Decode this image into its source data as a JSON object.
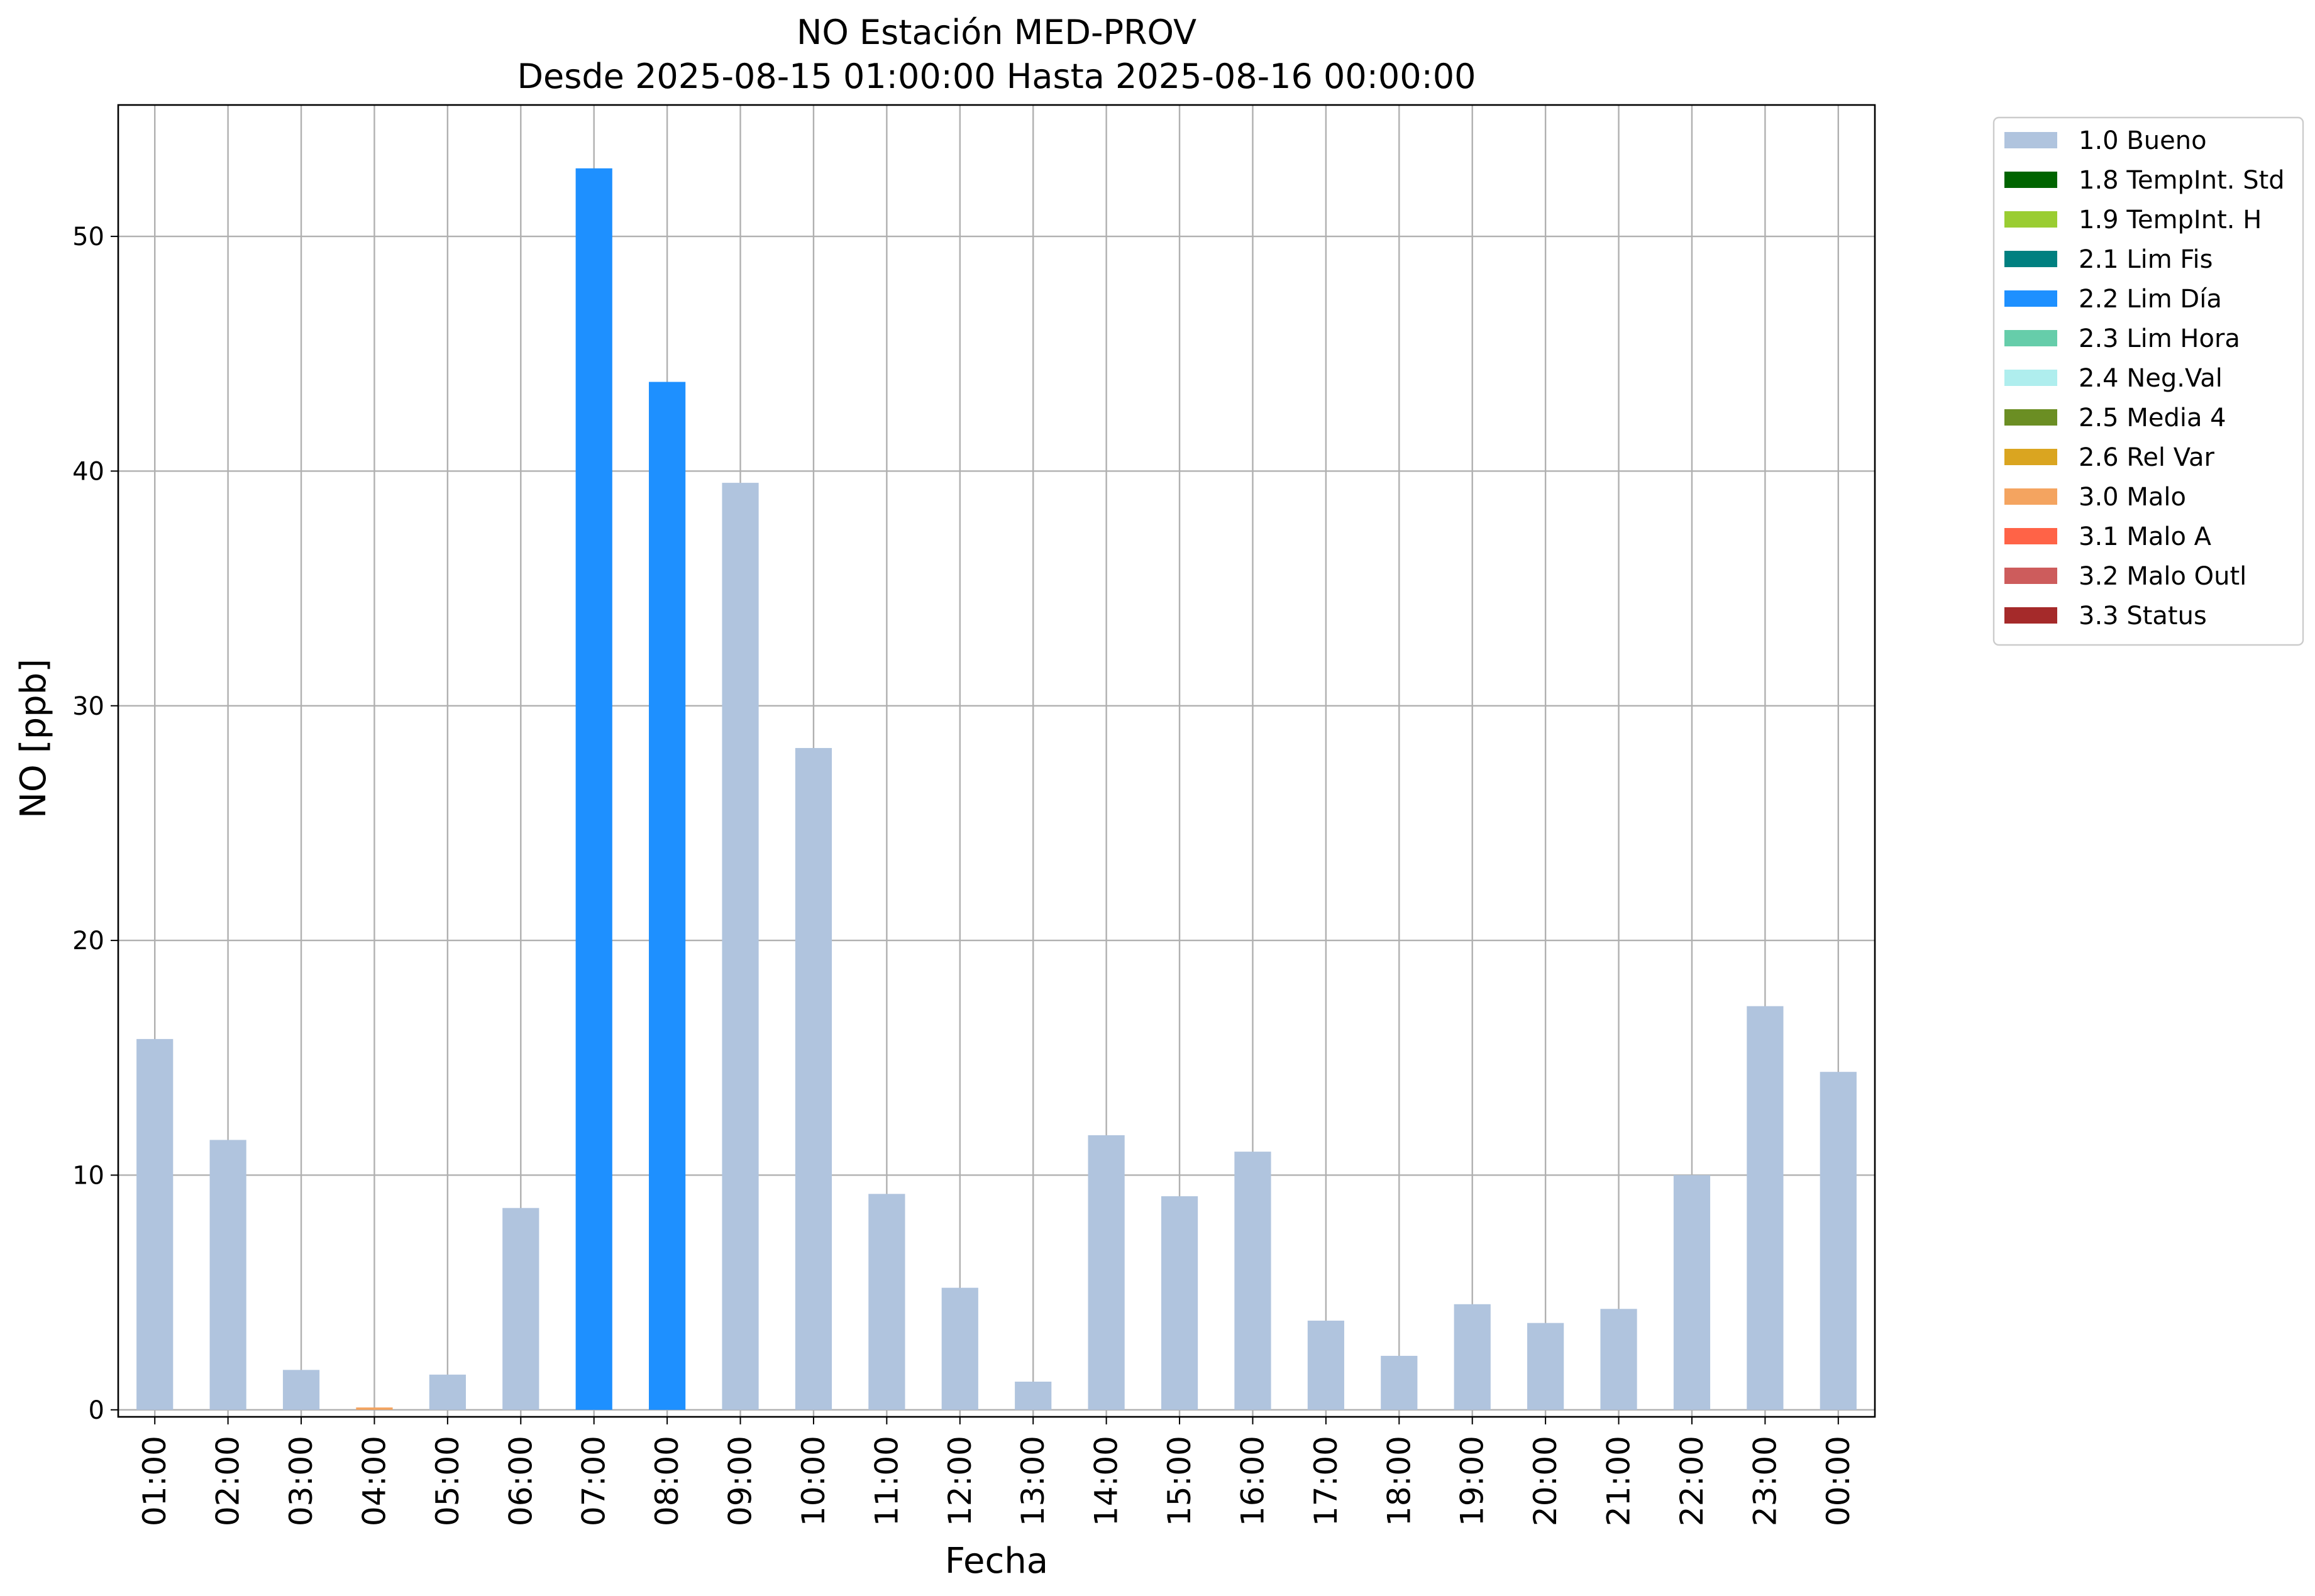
{
  "chart_data": {
    "type": "bar",
    "title": "NO Estación MED-PROV",
    "subtitle": "Desde 2025-08-15 01:00:00 Hasta 2025-08-16 00:00:00",
    "xlabel": "Fecha",
    "ylabel": "NO [ppb]",
    "ylim": [
      -0.3,
      55.6
    ],
    "yticks": [
      0,
      10,
      20,
      30,
      40,
      50
    ],
    "grid": true,
    "legend_position": "outside-top-right",
    "categories": [
      "01:00",
      "02:00",
      "03:00",
      "04:00",
      "05:00",
      "06:00",
      "07:00",
      "08:00",
      "09:00",
      "10:00",
      "11:00",
      "12:00",
      "13:00",
      "14:00",
      "15:00",
      "16:00",
      "17:00",
      "18:00",
      "19:00",
      "20:00",
      "21:00",
      "22:00",
      "23:00",
      "00:00"
    ],
    "values": [
      15.8,
      11.5,
      1.7,
      0.1,
      1.5,
      8.6,
      52.9,
      43.8,
      39.5,
      28.2,
      9.2,
      5.2,
      1.2,
      11.7,
      9.1,
      11.0,
      3.8,
      2.3,
      4.5,
      3.7,
      4.3,
      10.0,
      17.2,
      14.4
    ],
    "flags": [
      "1.0 Bueno",
      "1.0 Bueno",
      "1.0 Bueno",
      "3.0 Malo",
      "1.0 Bueno",
      "1.0 Bueno",
      "2.2 Lim Día",
      "2.2 Lim Día",
      "1.0 Bueno",
      "1.0 Bueno",
      "1.0 Bueno",
      "1.0 Bueno",
      "1.0 Bueno",
      "1.0 Bueno",
      "1.0 Bueno",
      "1.0 Bueno",
      "1.0 Bueno",
      "1.0 Bueno",
      "1.0 Bueno",
      "1.0 Bueno",
      "1.0 Bueno",
      "1.0 Bueno",
      "1.0 Bueno",
      "1.0 Bueno"
    ],
    "legend": [
      {
        "label": "1.0 Bueno",
        "color": "#b0c4de"
      },
      {
        "label": "1.8 TempInt. Std",
        "color": "#006400"
      },
      {
        "label": "1.9 TempInt. H",
        "color": "#9acd32"
      },
      {
        "label": "2.1 Lim Fis",
        "color": "#008080"
      },
      {
        "label": "2.2 Lim Día",
        "color": "#1e90ff"
      },
      {
        "label": "2.3 Lim Hora",
        "color": "#66cdaa"
      },
      {
        "label": "2.4 Neg.Val",
        "color": "#afeeee"
      },
      {
        "label": "2.5 Media 4",
        "color": "#6b8e23"
      },
      {
        "label": "2.6 Rel Var",
        "color": "#daa520"
      },
      {
        "label": "3.0 Malo",
        "color": "#f4a460"
      },
      {
        "label": "3.1 Malo A",
        "color": "#ff6347"
      },
      {
        "label": "3.2 Malo Outl",
        "color": "#cd5c5c"
      },
      {
        "label": "3.3 Status",
        "color": "#a52a2a"
      }
    ]
  }
}
